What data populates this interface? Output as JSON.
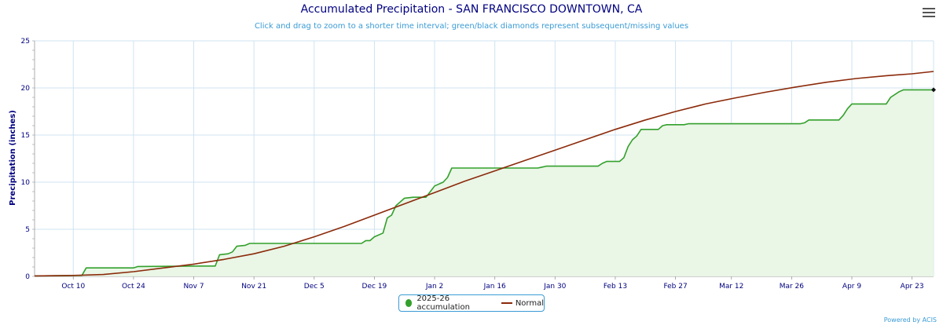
{
  "chart_data": {
    "type": "line",
    "title": "Accumulated Precipitation - SAN FRANCISCO DOWNTOWN, CA",
    "subtitle": "Click and drag to zoom to a shorter time interval; green/black diamonds represent subsequent/missing values",
    "ylabel": "Precipitation (inches)",
    "xlabel": "",
    "ylim": [
      0,
      25
    ],
    "yticks": [
      0,
      5,
      10,
      15,
      20,
      25
    ],
    "x_start": "Oct 1",
    "x_end": "Apr 28",
    "x_range_days": [
      0,
      209
    ],
    "xticks": [
      {
        "label": "Oct 10",
        "day": 9
      },
      {
        "label": "Oct 24",
        "day": 23
      },
      {
        "label": "Nov 7",
        "day": 37
      },
      {
        "label": "Nov 21",
        "day": 51
      },
      {
        "label": "Dec 5",
        "day": 65
      },
      {
        "label": "Dec 19",
        "day": 79
      },
      {
        "label": "Jan 2",
        "day": 93
      },
      {
        "label": "Jan 16",
        "day": 107
      },
      {
        "label": "Jan 30",
        "day": 121
      },
      {
        "label": "Feb 13",
        "day": 135
      },
      {
        "label": "Feb 27",
        "day": 149
      },
      {
        "label": "Mar 12",
        "day": 162
      },
      {
        "label": "Mar 26",
        "day": 176
      },
      {
        "label": "Apr 9",
        "day": 190
      },
      {
        "label": "Apr 23",
        "day": 204
      }
    ],
    "grid": true,
    "legend_placement": "bottom-center",
    "series": [
      {
        "name": "2025-26 accumulation",
        "color": "#33a02c",
        "fill": "#eaf6e6",
        "points": [
          [
            0,
            0.05
          ],
          [
            11,
            0.1
          ],
          [
            12,
            0.9
          ],
          [
            23,
            0.9
          ],
          [
            24,
            1.05
          ],
          [
            40,
            1.1
          ],
          [
            41,
            1.1
          ],
          [
            42,
            1.1
          ],
          [
            43,
            2.3
          ],
          [
            45,
            2.4
          ],
          [
            46,
            2.6
          ],
          [
            47,
            3.2
          ],
          [
            49,
            3.3
          ],
          [
            50,
            3.5
          ],
          [
            76,
            3.5
          ],
          [
            77,
            3.8
          ],
          [
            78,
            3.8
          ],
          [
            79,
            4.2
          ],
          [
            81,
            4.6
          ],
          [
            82,
            6.2
          ],
          [
            83,
            6.5
          ],
          [
            84,
            7.5
          ],
          [
            86,
            8.3
          ],
          [
            88,
            8.4
          ],
          [
            91,
            8.4
          ],
          [
            92,
            9.0
          ],
          [
            93,
            9.6
          ],
          [
            95,
            10.0
          ],
          [
            96,
            10.5
          ],
          [
            97,
            11.5
          ],
          [
            117,
            11.5
          ],
          [
            118,
            11.6
          ],
          [
            119,
            11.7
          ],
          [
            131,
            11.7
          ],
          [
            132,
            12.0
          ],
          [
            133,
            12.2
          ],
          [
            136,
            12.2
          ],
          [
            137,
            12.6
          ],
          [
            138,
            13.8
          ],
          [
            139,
            14.5
          ],
          [
            140,
            14.9
          ],
          [
            141,
            15.6
          ],
          [
            145,
            15.6
          ],
          [
            146,
            16.0
          ],
          [
            147,
            16.1
          ],
          [
            151,
            16.1
          ],
          [
            152,
            16.2
          ],
          [
            178,
            16.2
          ],
          [
            179,
            16.3
          ],
          [
            180,
            16.6
          ],
          [
            187,
            16.6
          ],
          [
            188,
            17.1
          ],
          [
            189,
            17.8
          ],
          [
            190,
            18.3
          ],
          [
            198,
            18.3
          ],
          [
            199,
            19.0
          ],
          [
            201,
            19.6
          ],
          [
            202,
            19.8
          ],
          [
            209,
            19.8
          ]
        ]
      },
      {
        "name": "Normal",
        "color": "#8b2a0a",
        "points": [
          [
            0,
            0.05
          ],
          [
            9,
            0.1
          ],
          [
            16,
            0.2
          ],
          [
            23,
            0.5
          ],
          [
            30,
            0.9
          ],
          [
            37,
            1.3
          ],
          [
            44,
            1.8
          ],
          [
            51,
            2.4
          ],
          [
            58,
            3.2
          ],
          [
            65,
            4.2
          ],
          [
            72,
            5.3
          ],
          [
            79,
            6.5
          ],
          [
            86,
            7.7
          ],
          [
            93,
            8.9
          ],
          [
            100,
            10.1
          ],
          [
            107,
            11.2
          ],
          [
            114,
            12.3
          ],
          [
            121,
            13.4
          ],
          [
            128,
            14.5
          ],
          [
            135,
            15.6
          ],
          [
            142,
            16.6
          ],
          [
            149,
            17.5
          ],
          [
            156,
            18.3
          ],
          [
            163,
            18.95
          ],
          [
            170,
            19.55
          ],
          [
            177,
            20.1
          ],
          [
            184,
            20.6
          ],
          [
            191,
            21.0
          ],
          [
            198,
            21.3
          ],
          [
            204,
            21.5
          ],
          [
            209,
            21.75
          ]
        ]
      }
    ]
  },
  "menu_icon": "hamburger-menu-icon",
  "credits": "Powered by ACIS"
}
